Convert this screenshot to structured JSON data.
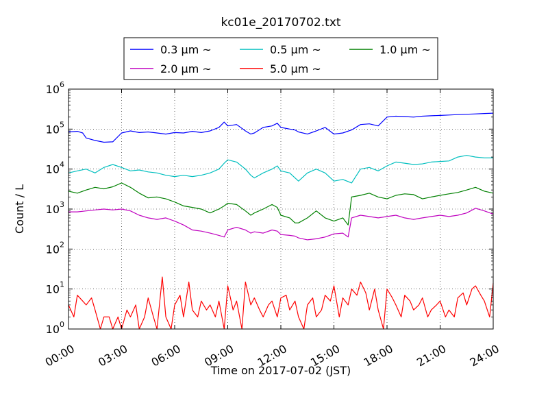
{
  "chart_data": {
    "type": "line",
    "title": "kc01e_20170702.txt",
    "xlabel": "Time on 2017-07-02 (JST)",
    "ylabel": "Count / L",
    "yscale": "log",
    "ylim": [
      1,
      1000000
    ],
    "xlim": [
      "00:00",
      "24:00"
    ],
    "x_unit": "hours",
    "grid": true,
    "legend_position": "top-center",
    "xticks": [
      "00:00",
      "03:00",
      "06:00",
      "09:00",
      "12:00",
      "15:00",
      "18:00",
      "21:00",
      "24:00"
    ],
    "yticks": [
      {
        "base": "10",
        "exp": "0",
        "value": 1
      },
      {
        "base": "10",
        "exp": "1",
        "value": 10
      },
      {
        "base": "10",
        "exp": "2",
        "value": 100
      },
      {
        "base": "10",
        "exp": "3",
        "value": 1000
      },
      {
        "base": "10",
        "exp": "4",
        "value": 10000
      },
      {
        "base": "10",
        "exp": "5",
        "value": 100000
      },
      {
        "base": "10",
        "exp": "6",
        "value": 1000000
      }
    ],
    "series": [
      {
        "name": "0.3 μm ~",
        "color": "#0000ff",
        "x": [
          0,
          0.5,
          0.8,
          1.0,
          1.5,
          2.0,
          2.5,
          3.0,
          3.5,
          4.0,
          4.5,
          5.0,
          5.5,
          6.0,
          6.5,
          7.0,
          7.5,
          8.0,
          8.5,
          8.8,
          9.0,
          9.5,
          10.0,
          10.3,
          10.5,
          11.0,
          11.5,
          11.8,
          12.0,
          12.5,
          12.8,
          13.0,
          13.5,
          14.0,
          14.5,
          15.0,
          15.5,
          16.0,
          16.5,
          17.0,
          17.5,
          18.0,
          18.5,
          19.0,
          19.5,
          20.0,
          20.5,
          21.0,
          21.5,
          22.0,
          22.5,
          23.0,
          23.5,
          24.0
        ],
        "y": [
          85000,
          88000,
          80000,
          60000,
          52000,
          47000,
          48000,
          80000,
          90000,
          82000,
          85000,
          80000,
          75000,
          82000,
          80000,
          88000,
          82000,
          90000,
          110000,
          150000,
          120000,
          130000,
          90000,
          75000,
          80000,
          110000,
          120000,
          140000,
          110000,
          100000,
          95000,
          85000,
          75000,
          90000,
          110000,
          75000,
          80000,
          95000,
          130000,
          135000,
          120000,
          200000,
          210000,
          205000,
          200000,
          210000,
          215000,
          220000,
          225000,
          230000,
          235000,
          240000,
          245000,
          250000
        ]
      },
      {
        "name": "0.5 μm ~",
        "color": "#00bfbf",
        "x": [
          0,
          0.5,
          1.0,
          1.5,
          2.0,
          2.5,
          3.0,
          3.5,
          4.0,
          4.5,
          5.0,
          5.5,
          6.0,
          6.5,
          7.0,
          7.5,
          8.0,
          8.5,
          8.8,
          9.0,
          9.5,
          10.0,
          10.3,
          10.5,
          11.0,
          11.5,
          11.8,
          12.0,
          12.5,
          12.8,
          13.0,
          13.5,
          14.0,
          14.5,
          15.0,
          15.5,
          16.0,
          16.5,
          17.0,
          17.5,
          18.0,
          18.5,
          19.0,
          19.5,
          20.0,
          20.5,
          21.0,
          21.5,
          22.0,
          22.5,
          23.0,
          23.5,
          24.0
        ],
        "y": [
          8000,
          9000,
          10000,
          8000,
          11000,
          13000,
          11000,
          9000,
          9500,
          8500,
          8000,
          7000,
          6500,
          7000,
          6500,
          7000,
          8000,
          10000,
          14000,
          17000,
          15000,
          10000,
          7000,
          6000,
          8000,
          10000,
          12000,
          9000,
          8000,
          6000,
          5000,
          8000,
          10000,
          8000,
          5000,
          5500,
          4500,
          10000,
          11000,
          9000,
          12000,
          15000,
          14000,
          13000,
          13500,
          15000,
          15500,
          16000,
          20000,
          22000,
          20000,
          19000,
          19000
        ]
      },
      {
        "name": "1.0 μm ~",
        "color": "#008000",
        "x": [
          0,
          0.5,
          1.0,
          1.5,
          2.0,
          2.5,
          3.0,
          3.5,
          4.0,
          4.5,
          5.0,
          5.5,
          6.0,
          6.5,
          7.0,
          7.5,
          8.0,
          8.5,
          8.8,
          9.0,
          9.5,
          10.0,
          10.3,
          10.5,
          11.0,
          11.5,
          11.8,
          12.0,
          12.5,
          12.8,
          13.0,
          13.5,
          14.0,
          14.5,
          15.0,
          15.5,
          15.8,
          16.0,
          16.5,
          17.0,
          17.5,
          18.0,
          18.5,
          19.0,
          19.5,
          20.0,
          20.5,
          21.0,
          21.5,
          22.0,
          22.5,
          23.0,
          23.5,
          24.0
        ],
        "y": [
          2800,
          2500,
          3000,
          3500,
          3200,
          3600,
          4500,
          3500,
          2500,
          1900,
          2000,
          1800,
          1500,
          1200,
          1100,
          1000,
          800,
          1000,
          1200,
          1400,
          1300,
          900,
          700,
          800,
          1000,
          1300,
          1100,
          700,
          600,
          450,
          450,
          600,
          900,
          600,
          500,
          600,
          400,
          2000,
          2200,
          2500,
          2000,
          1800,
          2200,
          2400,
          2300,
          1800,
          2000,
          2200,
          2400,
          2600,
          3000,
          3500,
          2800,
          2500
        ]
      },
      {
        "name": "2.0 μm ~",
        "color": "#bf00bf",
        "x": [
          0,
          0.5,
          1.0,
          1.5,
          2.0,
          2.5,
          3.0,
          3.5,
          4.0,
          4.5,
          5.0,
          5.5,
          6.0,
          6.5,
          7.0,
          7.5,
          8.0,
          8.5,
          8.8,
          9.0,
          9.5,
          10.0,
          10.3,
          10.5,
          11.0,
          11.5,
          11.8,
          12.0,
          12.5,
          12.8,
          13.0,
          13.5,
          14.0,
          14.5,
          15.0,
          15.5,
          15.8,
          16.0,
          16.5,
          17.0,
          17.5,
          18.0,
          18.5,
          19.0,
          19.5,
          20.0,
          20.5,
          21.0,
          21.5,
          22.0,
          22.5,
          23.0,
          23.5,
          24.0
        ],
        "y": [
          850,
          850,
          900,
          950,
          1000,
          950,
          1000,
          900,
          700,
          600,
          550,
          600,
          500,
          400,
          300,
          280,
          250,
          220,
          200,
          300,
          350,
          300,
          250,
          270,
          250,
          300,
          280,
          230,
          220,
          210,
          190,
          170,
          180,
          200,
          240,
          250,
          200,
          600,
          700,
          650,
          600,
          650,
          700,
          600,
          550,
          600,
          650,
          700,
          650,
          700,
          800,
          1050,
          900,
          750
        ]
      },
      {
        "name": "5.0 μm ~",
        "color": "#ff0000",
        "x": [
          0,
          0.3,
          0.5,
          0.8,
          1.0,
          1.3,
          1.5,
          1.8,
          2.0,
          2.3,
          2.5,
          2.8,
          3.0,
          3.3,
          3.5,
          3.8,
          4.0,
          4.3,
          4.5,
          4.8,
          5.0,
          5.3,
          5.5,
          5.8,
          6.0,
          6.3,
          6.5,
          6.8,
          7.0,
          7.3,
          7.5,
          7.8,
          8.0,
          8.3,
          8.5,
          8.8,
          9.0,
          9.3,
          9.5,
          9.8,
          10.0,
          10.3,
          10.5,
          10.8,
          11.0,
          11.3,
          11.5,
          11.8,
          12.0,
          12.3,
          12.5,
          12.8,
          13.0,
          13.3,
          13.5,
          13.8,
          14.0,
          14.3,
          14.5,
          14.8,
          15.0,
          15.3,
          15.5,
          15.8,
          16.0,
          16.3,
          16.5,
          16.8,
          17.0,
          17.3,
          17.5,
          17.8,
          18.0,
          18.3,
          18.5,
          18.8,
          19.0,
          19.3,
          19.5,
          19.8,
          20.0,
          20.3,
          20.5,
          20.8,
          21.0,
          21.3,
          21.5,
          21.8,
          22.0,
          22.3,
          22.5,
          22.8,
          23.0,
          23.3,
          23.5,
          23.8,
          24.0
        ],
        "y": [
          4,
          2,
          7,
          5,
          4,
          6,
          3,
          1,
          2,
          2,
          1,
          2,
          1,
          3,
          2,
          4,
          1,
          2,
          6,
          2,
          1,
          20,
          2,
          1,
          4,
          7,
          2,
          15,
          3,
          2,
          5,
          3,
          4,
          2,
          5,
          1,
          12,
          3,
          5,
          1,
          15,
          4,
          6,
          3,
          2,
          4,
          5,
          2,
          6,
          7,
          3,
          5,
          2,
          1,
          4,
          6,
          2,
          3,
          7,
          5,
          12,
          2,
          6,
          4,
          10,
          7,
          15,
          8,
          3,
          10,
          3,
          1,
          10,
          6,
          4,
          2,
          7,
          5,
          3,
          4,
          6,
          2,
          3,
          4,
          5,
          2,
          3,
          2,
          6,
          8,
          4,
          10,
          12,
          7,
          5,
          2,
          14
        ]
      }
    ]
  }
}
